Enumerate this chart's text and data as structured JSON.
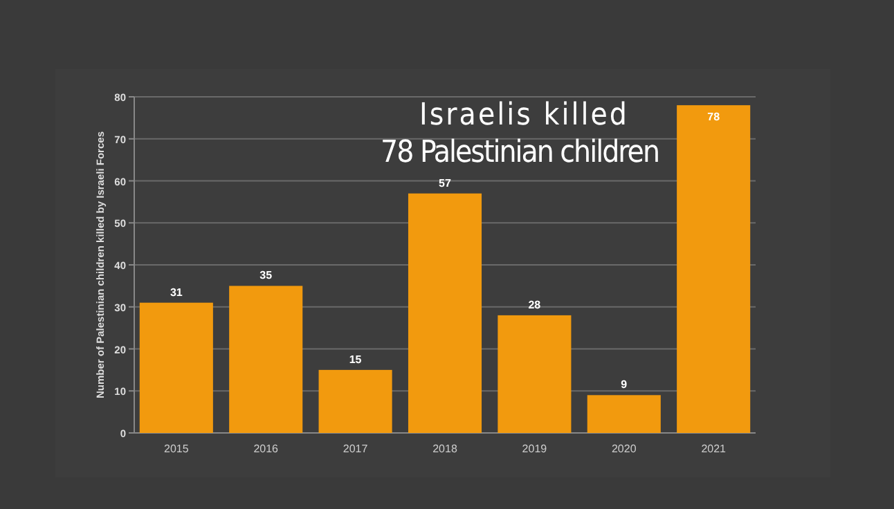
{
  "chart_data": {
    "type": "bar",
    "title": "Israelis killed\n78 Palestinian children",
    "ylabel": "Number of Palestinian children killed by Israeli Forces",
    "categories": [
      "2015",
      "2016",
      "2017",
      "2018",
      "2019",
      "2020",
      "2021"
    ],
    "values": [
      31,
      35,
      15,
      57,
      28,
      9,
      78
    ],
    "color": "#f29a0e",
    "ylim": [
      0,
      80
    ],
    "yticks": [
      0,
      10,
      20,
      30,
      40,
      50,
      60,
      70,
      80
    ],
    "grid": "y",
    "data_labels": true
  }
}
